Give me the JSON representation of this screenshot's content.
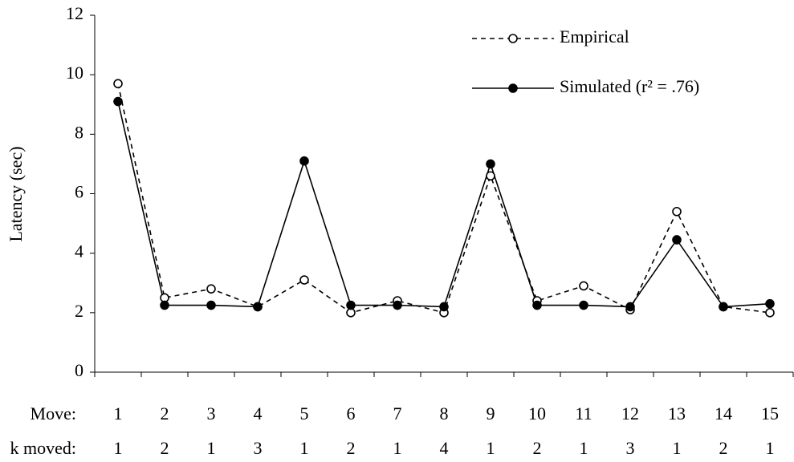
{
  "chart_data": {
    "type": "line",
    "y_label": "Latency (sec)",
    "row_labels": [
      "Move:",
      "k moved:"
    ],
    "categories": [
      "1",
      "2",
      "3",
      "4",
      "5",
      "6",
      "7",
      "8",
      "9",
      "10",
      "11",
      "12",
      "13",
      "14",
      "15"
    ],
    "disk_moved": [
      1,
      2,
      1,
      3,
      1,
      2,
      1,
      4,
      1,
      2,
      1,
      3,
      1,
      2,
      1
    ],
    "series": [
      {
        "name": "Empirical",
        "color": "#000000",
        "dashed": true,
        "marker": "open",
        "values": [
          9.7,
          2.5,
          2.8,
          2.2,
          3.1,
          2.0,
          2.4,
          2.0,
          6.6,
          2.4,
          2.9,
          2.1,
          5.4,
          2.2,
          2.0
        ]
      },
      {
        "name": "Simulated (r² = .76)",
        "color": "#000000",
        "dashed": false,
        "marker": "filled",
        "values": [
          9.1,
          2.25,
          2.25,
          2.2,
          7.1,
          2.25,
          2.25,
          2.2,
          7.0,
          2.25,
          2.25,
          2.2,
          4.45,
          2.2,
          2.3
        ]
      }
    ],
    "ylim": [
      0,
      12
    ],
    "yticks": [
      0,
      2,
      4,
      6,
      8,
      10,
      12
    ],
    "grid": false,
    "legend": "top-right"
  }
}
